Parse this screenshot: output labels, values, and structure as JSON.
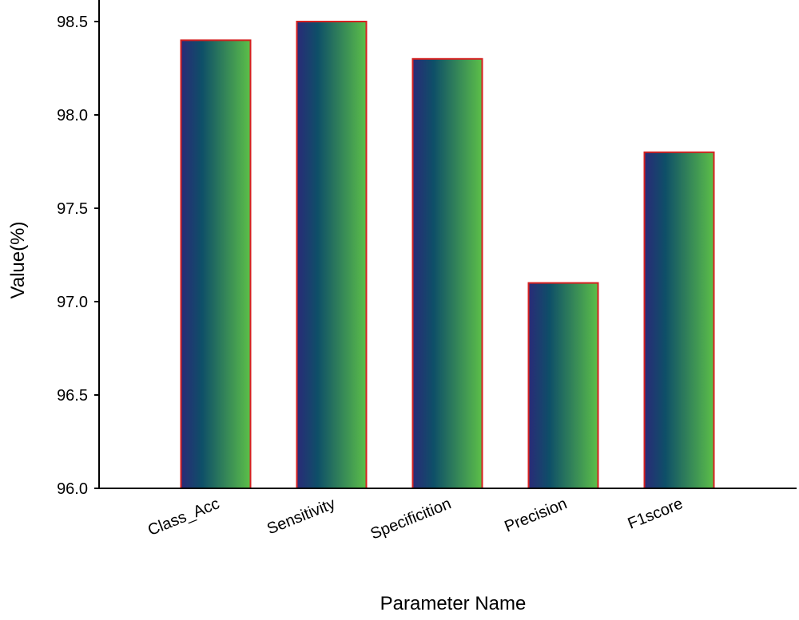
{
  "chart_data": {
    "type": "bar",
    "title": "",
    "xlabel": "Parameter Name",
    "ylabel": "Value(%)",
    "categories": [
      "Class_Acc",
      "Sensitivity",
      "Specificition",
      "Precision",
      "F1score"
    ],
    "values": [
      98.4,
      98.5,
      98.3,
      97.1,
      97.8
    ],
    "ylim": [
      96.0,
      98.6
    ],
    "yticks": [
      96.0,
      96.5,
      97.0,
      97.5,
      98.0,
      98.5
    ],
    "ytick_labels": [
      "96.0",
      "96.5",
      "97.0",
      "97.5",
      "98.0",
      "98.5"
    ],
    "grid": false,
    "legend": "none"
  },
  "colors": {
    "bar_gradient_start": "#2a2a78",
    "bar_gradient_mid": "#0e4f68",
    "bar_gradient_end": "#5cbf48",
    "bar_outline": "#d62020",
    "axis": "#000000"
  }
}
